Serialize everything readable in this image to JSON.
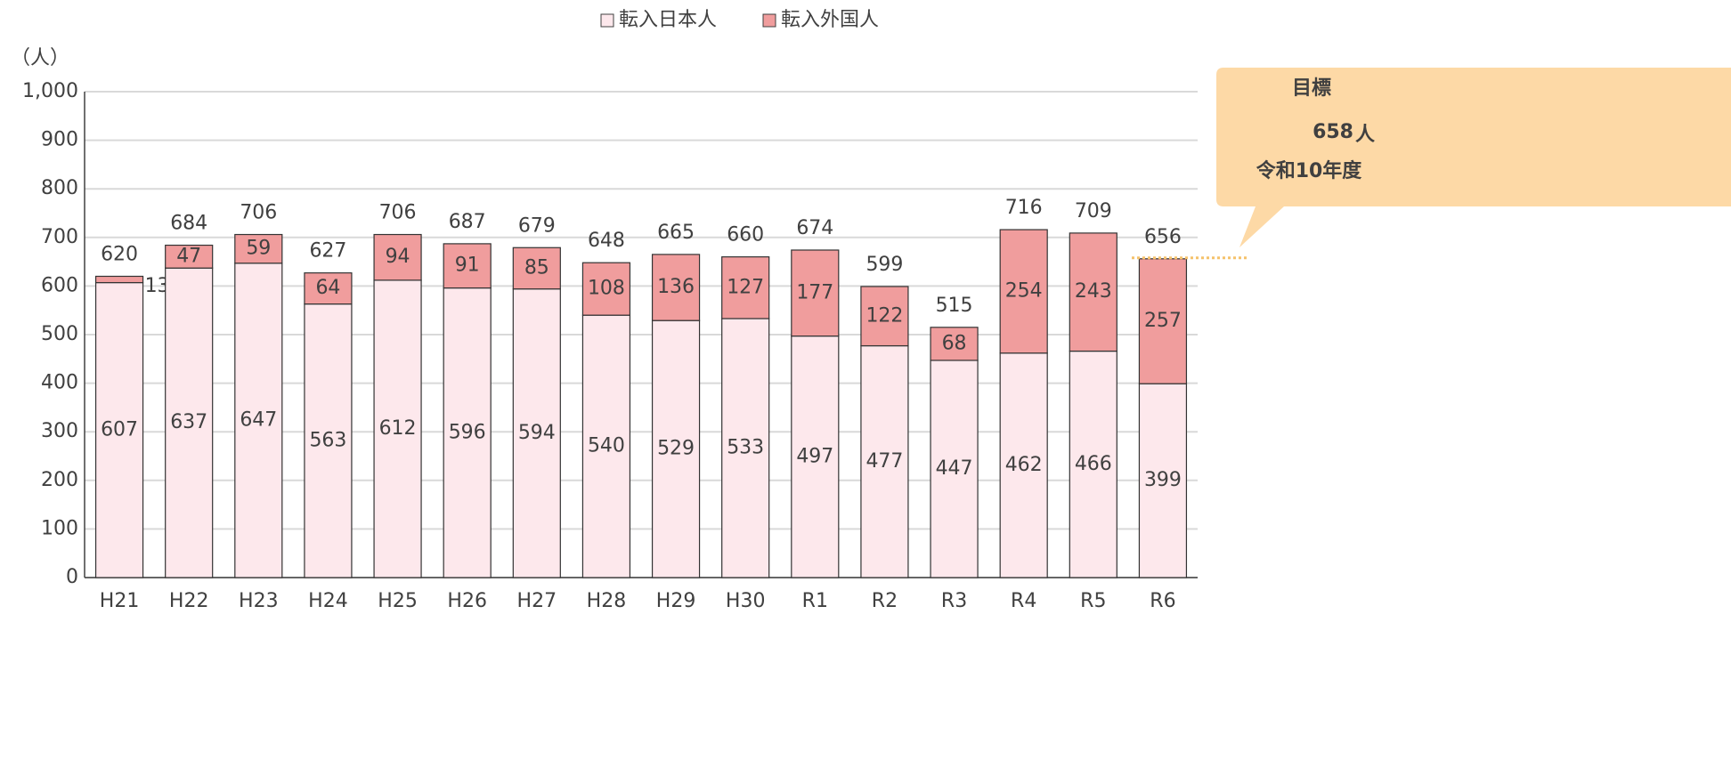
{
  "chart_data": {
    "type": "stacked_bar",
    "y_label": "（人）",
    "categories": [
      "H21",
      "H22",
      "H23",
      "H24",
      "H25",
      "H26",
      "H27",
      "H28",
      "H29",
      "H30",
      "R1",
      "R2",
      "R3",
      "R4",
      "R5",
      "R6"
    ],
    "series": [
      {
        "name": "転入日本人",
        "color": "#fde8ec",
        "values": [
          607,
          637,
          647,
          563,
          612,
          596,
          594,
          540,
          529,
          533,
          497,
          477,
          447,
          462,
          466,
          399
        ]
      },
      {
        "name": "転入外国人",
        "color": "#f09d9d",
        "values": [
          13,
          47,
          59,
          64,
          94,
          91,
          85,
          108,
          136,
          127,
          177,
          122,
          68,
          254,
          243,
          257
        ]
      }
    ],
    "totals": [
      620,
      684,
      706,
      627,
      706,
      687,
      679,
      648,
      665,
      660,
      674,
      599,
      515,
      716,
      709,
      656
    ],
    "ylim": [
      0,
      1000
    ],
    "yticks": [
      0,
      100,
      200,
      300,
      400,
      500,
      600,
      700,
      800,
      900,
      {
        "value": 1000,
        "label": "1,000"
      }
    ],
    "grid": true,
    "legend": "top",
    "target": {
      "title": "目標",
      "value": 658,
      "unit": "人",
      "period": "令和10年度",
      "color": "#f5c26b",
      "box_color": "#fdd9a6"
    }
  }
}
